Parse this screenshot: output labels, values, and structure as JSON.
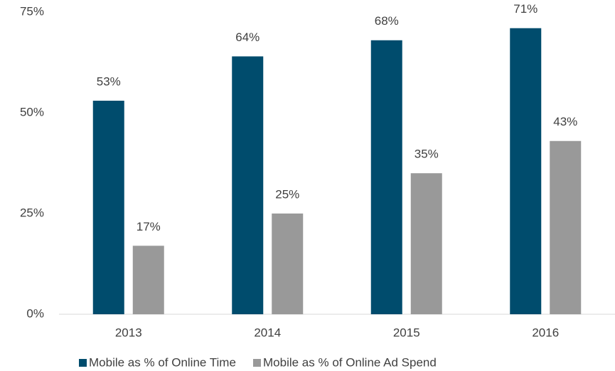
{
  "chart_data": {
    "type": "bar",
    "categories": [
      "2013",
      "2014",
      "2015",
      "2016"
    ],
    "series": [
      {
        "name": "Mobile as % of Online Time",
        "color": "#004c6d",
        "values": [
          53,
          64,
          68,
          71
        ],
        "value_labels": [
          "53%",
          "64%",
          "68%",
          "71%"
        ]
      },
      {
        "name": "Mobile as % of Online Ad Spend",
        "color": "#999999",
        "values": [
          17,
          25,
          35,
          43
        ],
        "value_labels": [
          "17%",
          "25%",
          "35%",
          "43%"
        ]
      }
    ],
    "ylim": [
      0,
      75
    ],
    "yticks": [
      {
        "value": 0,
        "label": "0%"
      },
      {
        "value": 25,
        "label": "25%"
      },
      {
        "value": 50,
        "label": "50%"
      },
      {
        "value": 75,
        "label": "75%"
      }
    ],
    "grid": false,
    "legend": "bottom"
  }
}
